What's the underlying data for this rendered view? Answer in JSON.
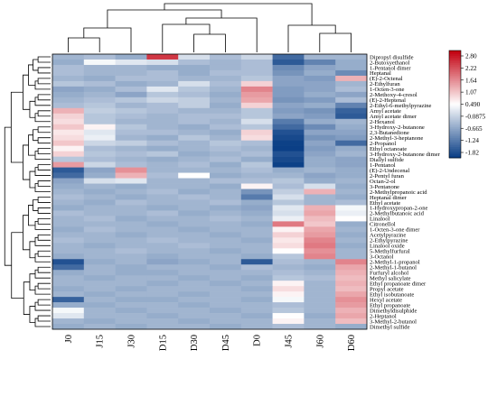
{
  "chart_data": {
    "type": "heatmap",
    "columns": [
      "J0",
      "J15",
      "J30",
      "D15",
      "D30",
      "D45",
      "D0",
      "J45",
      "J60",
      "D60"
    ],
    "rows": [
      "Dipropyl disulfide",
      "2-Butoxyethanol",
      "1-Pentanol dimer",
      "Heptanal",
      "(E)-2-Octenal",
      "2-Ethylfuran",
      "1-Octen-3-one",
      "2-Methoxy-4-cresol",
      "(E)-2-Heptenal",
      "2-Ethyl-6-methylpyrazine",
      "Amyl acetate",
      "Amyl acetate dimer",
      "2-Hexanol",
      "3-Hydroxy-2-butanone",
      "2,3-Butanedione",
      "2-Methyl-3-heptanone",
      "2-Propanol",
      "Ethyl octanoate",
      "3-Hydroxy-2-butanone dimer",
      "Diallyl sulfide",
      "1-Pentanol",
      "(E)-2-Undecenal",
      "2-Pentyl furan",
      "Octan-2-ol",
      "3-Pentanone",
      "2-Methylpropanoic acid",
      "Heptanal dimer",
      "Ethyl acetate",
      "1-Hydroxypropan-2-one",
      "2-Methylbutanoic acid",
      "Linalool",
      "Citronellol",
      "1-Octen-3-one dimer",
      "Acetylpyrazine",
      "2-Ethylpyrazine",
      "Linalool oxide",
      "5-Methylfurfural",
      "3-Octanol",
      "2-Methyl-1-propanol",
      "2-Methyl-1-butanol",
      "Furfuryl alcohol",
      "Methyl salicylate",
      "Ethyl propanoate dimer",
      "Propyl acetate",
      "Ethyl isobutanoate",
      "Hexyl acetate",
      "Ethyl propanoate",
      "Dimethyldisulphide",
      "2-Heptanol",
      "3-Methyl-2-butanol",
      "Dimethyl sulfide"
    ],
    "values": [
      [
        -0.4,
        -0.3,
        -0.5,
        2.3,
        0.1,
        -0.3,
        0.0,
        -1.3,
        -0.4,
        -0.4
      ],
      [
        -0.5,
        0.4,
        0.2,
        0.1,
        -0.3,
        -0.4,
        -0.3,
        -1.5,
        -1.0,
        -0.5
      ],
      [
        -0.3,
        -0.4,
        -0.4,
        -0.5,
        -0.5,
        -0.4,
        -0.3,
        -0.9,
        -0.6,
        -0.5
      ],
      [
        -0.3,
        -0.4,
        -0.4,
        -0.3,
        -0.5,
        -0.3,
        -0.3,
        -0.8,
        -0.5,
        -0.9
      ],
      [
        -0.4,
        -0.5,
        -0.3,
        -0.3,
        -0.4,
        -0.4,
        -0.2,
        -0.6,
        -0.7,
        1.2
      ],
      [
        -0.2,
        -0.3,
        -0.5,
        -0.4,
        0.1,
        -0.3,
        0.9,
        -0.6,
        -0.6,
        -0.4
      ],
      [
        -0.6,
        -0.5,
        -0.3,
        0.2,
        -0.2,
        -0.4,
        1.6,
        -0.7,
        -0.6,
        -0.3
      ],
      [
        -0.5,
        -0.4,
        -0.6,
        -0.2,
        -0.3,
        -0.5,
        1.4,
        -0.7,
        -0.5,
        -0.6
      ],
      [
        -0.4,
        -0.3,
        -0.2,
        0.0,
        -0.1,
        -0.4,
        1.3,
        -0.8,
        -0.7,
        -0.3
      ],
      [
        -0.3,
        -0.2,
        -0.4,
        -0.3,
        -0.1,
        -0.5,
        0.9,
        -0.6,
        -0.5,
        -1.0
      ],
      [
        1.2,
        -0.1,
        -0.2,
        -0.3,
        -0.4,
        -0.4,
        -0.2,
        -0.7,
        -0.8,
        -1.4
      ],
      [
        0.9,
        -0.2,
        -0.3,
        -0.4,
        -0.3,
        -0.3,
        -0.2,
        -0.6,
        -0.7,
        -1.5
      ],
      [
        0.8,
        -0.2,
        -0.4,
        -0.4,
        -0.3,
        -0.4,
        0.1,
        -1.1,
        -0.5,
        -0.4
      ],
      [
        1.0,
        0.6,
        -0.2,
        -0.4,
        -0.5,
        -0.3,
        -0.2,
        -1.3,
        -0.9,
        -0.5
      ],
      [
        0.7,
        0.2,
        -0.3,
        -0.3,
        -0.4,
        -0.5,
        0.9,
        -1.6,
        -0.6,
        -0.6
      ],
      [
        0.8,
        0.3,
        -0.4,
        -0.5,
        -0.2,
        -0.4,
        0.8,
        -1.7,
        -0.8,
        -0.7
      ],
      [
        1.0,
        0.0,
        -0.1,
        -0.3,
        -0.4,
        -0.2,
        -0.3,
        -1.8,
        -0.6,
        -1.3
      ],
      [
        0.6,
        -0.3,
        -0.4,
        -0.5,
        -0.4,
        -0.3,
        -0.4,
        -1.9,
        -0.7,
        -0.5
      ],
      [
        0.9,
        -0.2,
        -0.3,
        -0.2,
        -0.5,
        -0.4,
        -0.3,
        -1.6,
        -0.6,
        -0.4
      ],
      [
        -0.2,
        -0.3,
        -0.4,
        -0.5,
        -0.4,
        -0.3,
        -0.5,
        -1.7,
        -0.5,
        -0.6
      ],
      [
        1.4,
        0.0,
        -0.3,
        -0.4,
        -0.3,
        -0.5,
        -0.2,
        -1.8,
        -0.5,
        -0.6
      ],
      [
        -1.5,
        -0.6,
        1.5,
        -0.4,
        -0.4,
        -0.4,
        -0.3,
        -0.5,
        -0.4,
        -0.5
      ],
      [
        -1.3,
        -0.5,
        1.2,
        -0.3,
        0.5,
        -0.5,
        -0.4,
        -0.4,
        -0.6,
        -0.5
      ],
      [
        -0.6,
        0.1,
        0.2,
        -0.4,
        -0.4,
        -0.3,
        -0.3,
        -0.2,
        -0.5,
        -0.4
      ],
      [
        -0.5,
        -0.4,
        -0.5,
        -0.4,
        -0.4,
        -0.5,
        0.6,
        -0.3,
        0.1,
        -0.5
      ],
      [
        -0.4,
        -0.5,
        -0.4,
        -0.3,
        -0.5,
        -0.4,
        -0.8,
        -0.1,
        1.2,
        -0.4
      ],
      [
        -0.3,
        -0.4,
        -0.5,
        -0.4,
        -0.3,
        -0.4,
        -1.1,
        0.1,
        -0.4,
        -0.5
      ],
      [
        -0.4,
        -0.5,
        -0.3,
        -0.4,
        -0.4,
        -0.3,
        -0.5,
        -0.2,
        -0.4,
        -0.3
      ],
      [
        -0.5,
        -0.4,
        -0.4,
        -0.5,
        -0.4,
        -0.5,
        -0.6,
        0.2,
        1.2,
        0.4
      ],
      [
        -0.3,
        -0.4,
        -0.4,
        -0.3,
        -0.5,
        -0.4,
        -0.5,
        0.1,
        1.3,
        0.3
      ],
      [
        -0.4,
        -0.3,
        -0.5,
        -0.4,
        -0.4,
        -0.3,
        -0.4,
        0.3,
        1.1,
        0.5
      ],
      [
        -0.4,
        -0.4,
        -0.4,
        -0.5,
        -0.4,
        -0.4,
        -0.5,
        1.7,
        1.0,
        -0.5
      ],
      [
        -0.5,
        -0.3,
        -0.4,
        -0.4,
        -0.5,
        -0.4,
        -0.4,
        0.6,
        1.3,
        -0.4
      ],
      [
        -0.4,
        -0.4,
        -0.5,
        -0.4,
        -0.4,
        -0.5,
        -0.4,
        0.9,
        1.4,
        -0.5
      ],
      [
        -0.3,
        -0.4,
        -0.4,
        -0.3,
        -0.4,
        -0.4,
        -0.5,
        0.7,
        1.6,
        -0.4
      ],
      [
        -0.4,
        -0.5,
        -0.4,
        -0.4,
        -0.3,
        -0.4,
        -0.4,
        0.8,
        1.7,
        -0.5
      ],
      [
        -0.4,
        -0.4,
        -0.3,
        -0.4,
        -0.4,
        -0.5,
        -0.4,
        0.5,
        1.5,
        -0.4
      ],
      [
        -0.5,
        -0.4,
        -0.4,
        -0.5,
        -0.4,
        -0.4,
        -0.5,
        -0.2,
        1.6,
        -0.4
      ],
      [
        -1.6,
        -0.5,
        -0.4,
        -0.6,
        -0.5,
        -0.4,
        -1.5,
        -0.3,
        -0.4,
        1.6
      ],
      [
        -1.3,
        -0.4,
        -0.5,
        -0.4,
        -0.4,
        -0.5,
        -0.3,
        -0.4,
        -0.5,
        1.3
      ],
      [
        -0.5,
        -0.4,
        -0.5,
        -0.5,
        -0.4,
        -0.4,
        -0.4,
        -0.3,
        -0.4,
        1.2
      ],
      [
        -0.4,
        -0.5,
        -0.4,
        -0.4,
        -0.5,
        -0.4,
        -0.5,
        -0.2,
        -0.3,
        1.1
      ],
      [
        -0.4,
        -0.4,
        -0.4,
        -0.5,
        -0.4,
        -0.5,
        -0.4,
        0.6,
        -0.4,
        1.2
      ],
      [
        -0.5,
        -0.4,
        -0.5,
        -0.4,
        -0.4,
        -0.4,
        -0.5,
        0.8,
        -0.4,
        1.1
      ],
      [
        -0.4,
        -0.5,
        -0.4,
        -0.4,
        -0.5,
        -0.4,
        -0.4,
        0.6,
        -0.4,
        1.3
      ],
      [
        -1.4,
        -0.4,
        -0.5,
        -0.5,
        -0.4,
        -0.4,
        -0.5,
        0.4,
        -0.4,
        1.5
      ],
      [
        -0.5,
        -0.5,
        -0.4,
        -0.4,
        -0.5,
        -0.4,
        -0.4,
        -0.3,
        -0.4,
        1.4
      ],
      [
        0.4,
        -0.4,
        -0.5,
        -0.4,
        -0.4,
        -0.5,
        -0.4,
        -0.2,
        -0.4,
        1.2
      ],
      [
        0.2,
        -0.4,
        -0.4,
        -0.5,
        -0.4,
        -0.4,
        -0.5,
        0.5,
        -0.5,
        1.3
      ],
      [
        -0.4,
        -0.5,
        -0.4,
        -0.4,
        -0.5,
        -0.4,
        -0.4,
        0.6,
        -0.4,
        1.1
      ],
      [
        -0.5,
        -0.4,
        -0.5,
        -0.4,
        -0.4,
        -0.5,
        -0.4,
        -0.3,
        -0.4,
        -0.5
      ]
    ],
    "color_scale": {
      "min": -1.82,
      "max": 2.8,
      "ticks": [
        "2.80",
        "2.22",
        "1.64",
        "1.07",
        "0.490",
        "-0.0875",
        "-0.665",
        "-1.24",
        "-1.82"
      ],
      "colors": [
        "#b2182b",
        "#e23b3b",
        "#f07373",
        "#f7a9a9",
        "#f7f7f7",
        "#c7def2",
        "#7fb7ea",
        "#2f83d6",
        "#053061"
      ],
      "cmin": "#0b3f86",
      "cmid": "#ffffff",
      "cmax": "#c30010"
    },
    "col_dendrogram": true,
    "row_dendrogram": true,
    "legend": "right"
  }
}
